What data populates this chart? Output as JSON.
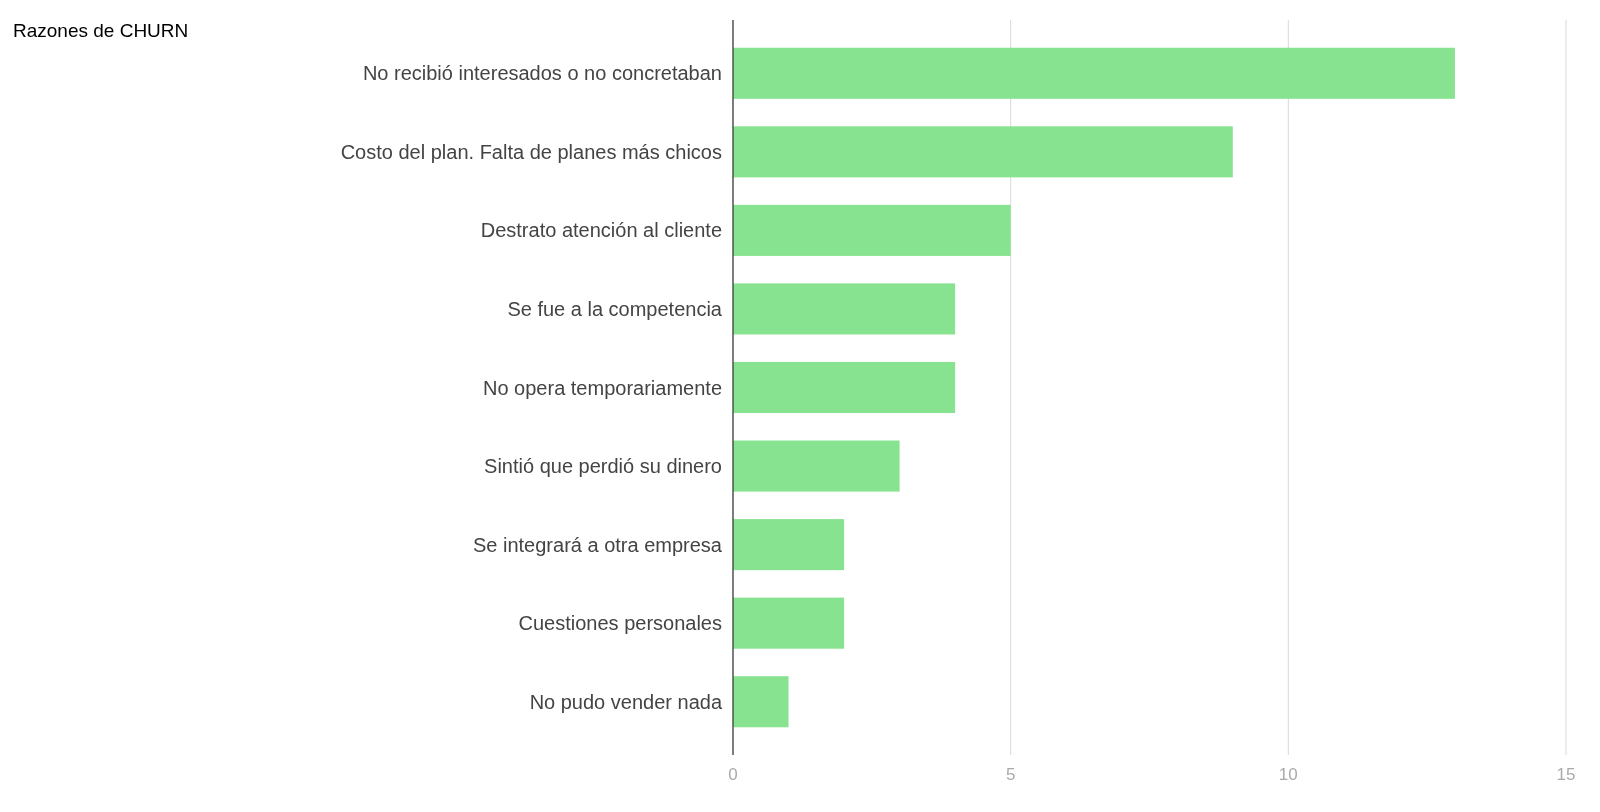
{
  "chart_data": {
    "type": "bar",
    "orientation": "horizontal",
    "title": "Razones de CHURN",
    "categories": [
      "No recibió interesados o no concretaban",
      "Costo del plan. Falta de planes más chicos",
      "Destrato atención al cliente",
      "Se fue a la competencia",
      "No opera temporariamente",
      "Sintió que perdió su dinero",
      "Se integrará a otra empresa",
      "Cuestiones personales",
      "No pudo vender nada"
    ],
    "values": [
      13,
      9,
      5,
      4,
      4,
      3,
      2,
      2,
      1
    ],
    "color": "#87e38f",
    "xlim": [
      0,
      15
    ],
    "xticks": [
      0,
      5,
      10,
      15
    ],
    "grid": "x"
  }
}
